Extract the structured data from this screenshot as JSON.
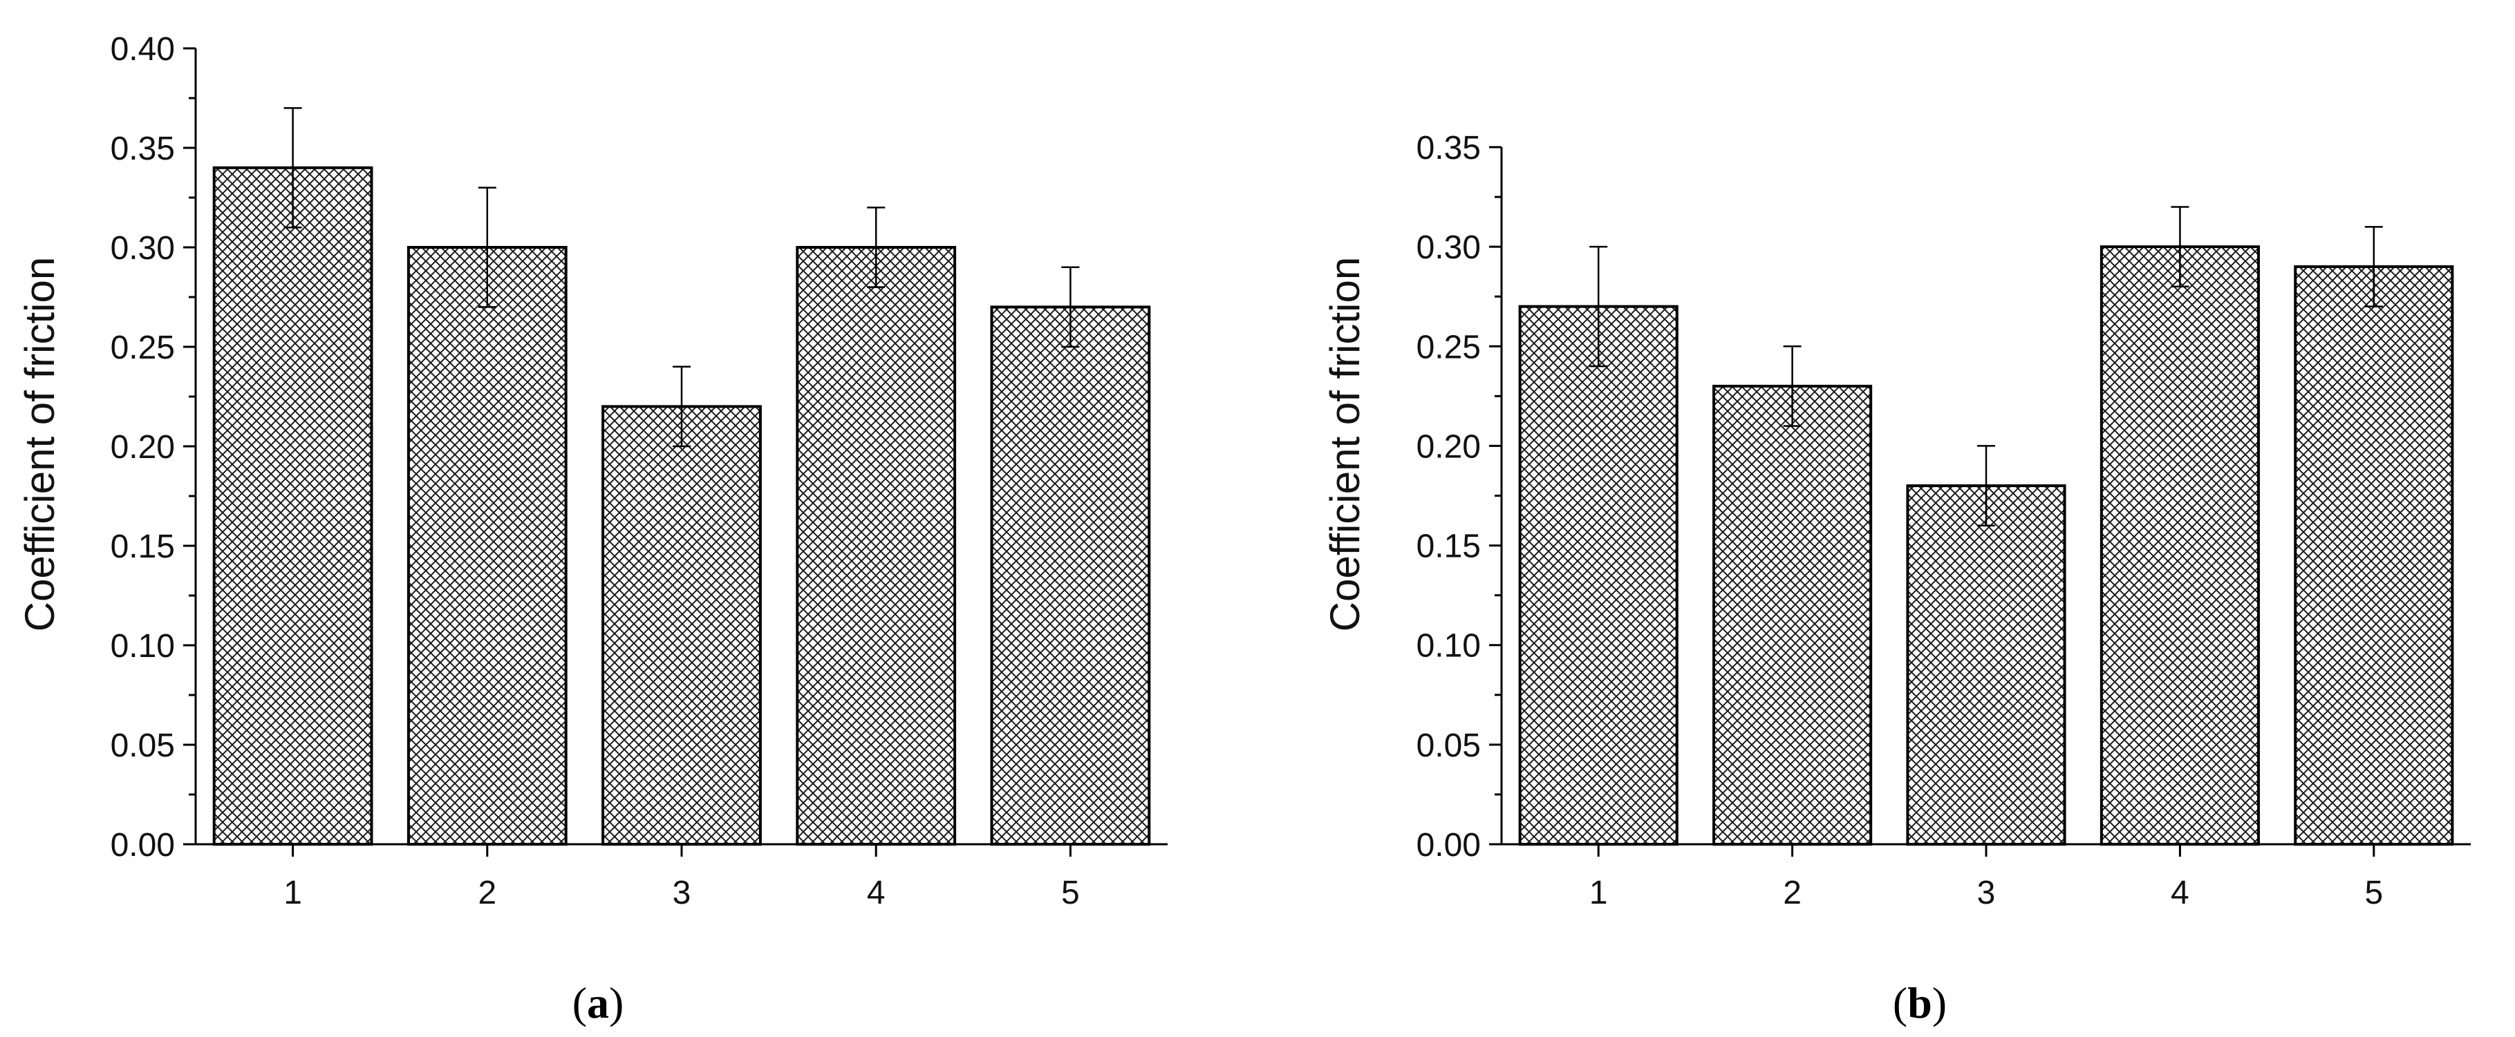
{
  "chart_data": [
    {
      "type": "bar",
      "panel_label": "a",
      "categories": [
        "1",
        "2",
        "3",
        "4",
        "5"
      ],
      "values": [
        0.34,
        0.3,
        0.22,
        0.3,
        0.27
      ],
      "errors": [
        0.03,
        0.03,
        0.02,
        0.02,
        0.02
      ],
      "title": "",
      "xlabel": "",
      "ylabel": "Coefficient of friction",
      "ylim": [
        0,
        0.4
      ],
      "yticks": [
        "0.00",
        "0.05",
        "0.10",
        "0.15",
        "0.20",
        "0.25",
        "0.30",
        "0.35",
        "0.40"
      ],
      "bar_fill": "crosshatch",
      "grid": false
    },
    {
      "type": "bar",
      "panel_label": "b",
      "categories": [
        "1",
        "2",
        "3",
        "4",
        "5"
      ],
      "values": [
        0.27,
        0.23,
        0.18,
        0.3,
        0.29
      ],
      "errors": [
        0.03,
        0.02,
        0.02,
        0.02,
        0.02
      ],
      "title": "",
      "xlabel": "",
      "ylabel": "Coefficient of friction",
      "ylim": [
        0,
        0.35
      ],
      "yticks": [
        "0.00",
        "0.05",
        "0.10",
        "0.15",
        "0.20",
        "0.25",
        "0.30",
        "0.35"
      ],
      "bar_fill": "crosshatch",
      "grid": false
    }
  ],
  "colors": {
    "bar_fill": "#ffffff",
    "hatch": "#1a1a1a",
    "axis": "#000000"
  }
}
